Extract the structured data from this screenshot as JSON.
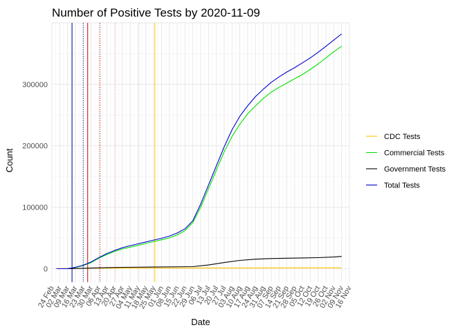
{
  "chart_data": {
    "type": "line",
    "title": "Number of Positive Tests by  2020-11-09",
    "xlabel": "Date",
    "ylabel": "Count",
    "x_type": "date",
    "xlim": [
      "2020-02-24",
      "2020-11-16"
    ],
    "ylim": [
      -22000,
      400000
    ],
    "y_ticks": [
      0,
      100000,
      200000,
      300000
    ],
    "y_tick_labels": [
      "0",
      "100000",
      "200000",
      "300000"
    ],
    "x_ticks": [
      "2020-02-24",
      "2020-03-02",
      "2020-03-09",
      "2020-03-16",
      "2020-03-23",
      "2020-03-30",
      "2020-04-06",
      "2020-04-13",
      "2020-04-20",
      "2020-04-27",
      "2020-05-04",
      "2020-05-11",
      "2020-05-18",
      "2020-05-25",
      "2020-06-01",
      "2020-06-08",
      "2020-06-15",
      "2020-06-22",
      "2020-06-29",
      "2020-07-06",
      "2020-07-13",
      "2020-07-20",
      "2020-07-27",
      "2020-08-03",
      "2020-08-10",
      "2020-08-17",
      "2020-08-24",
      "2020-08-31",
      "2020-09-07",
      "2020-09-14",
      "2020-09-21",
      "2020-09-28",
      "2020-10-05",
      "2020-10-12",
      "2020-10-19",
      "2020-10-26",
      "2020-11-02",
      "2020-11-09",
      "2020-11-16"
    ],
    "x_tick_labels": [
      "24 Feb",
      "02 Mar",
      "09 Mar",
      "16 Mar",
      "23 Mar",
      "30 Mar",
      "06 Apr",
      "13 Apr",
      "20 Apr",
      "27 Apr",
      "04 May",
      "11 May",
      "18 May",
      "25 May",
      "01 Jun",
      "08 Jun",
      "15 Jun",
      "22 Jun",
      "29 Jun",
      "06 Jul",
      "13 Jul",
      "20 Jul",
      "27 Jul",
      "03 Aug",
      "10 Aug",
      "17 Aug",
      "24 Aug",
      "31 Aug",
      "07 Sep",
      "14 Sep",
      "21 Sep",
      "28 Sep",
      "05 Oct",
      "12 Oct",
      "19 Oct",
      "26 Oct",
      "02 Nov",
      "09 Nov",
      "16 Nov"
    ],
    "grid": true,
    "legend_position": "right",
    "series": [
      {
        "name": "CDC Tests",
        "color": "#FFC300",
        "points": [
          [
            "2020-02-28",
            0
          ],
          [
            "2020-03-09",
            300
          ],
          [
            "2020-03-23",
            600
          ],
          [
            "2020-04-20",
            900
          ],
          [
            "2020-05-25",
            1100
          ],
          [
            "2020-07-06",
            1200
          ],
          [
            "2020-09-07",
            1300
          ],
          [
            "2020-11-09",
            1400
          ]
        ]
      },
      {
        "name": "Commercial Tests",
        "color": "#00E000",
        "points": [
          [
            "2020-02-28",
            0
          ],
          [
            "2020-03-09",
            0
          ],
          [
            "2020-03-16",
            2000
          ],
          [
            "2020-03-23",
            5000
          ],
          [
            "2020-03-30",
            10000
          ],
          [
            "2020-04-06",
            17000
          ],
          [
            "2020-04-13",
            23000
          ],
          [
            "2020-04-20",
            28000
          ],
          [
            "2020-04-27",
            32000
          ],
          [
            "2020-05-04",
            35000
          ],
          [
            "2020-05-11",
            38000
          ],
          [
            "2020-05-18",
            41000
          ],
          [
            "2020-05-25",
            44000
          ],
          [
            "2020-06-01",
            47000
          ],
          [
            "2020-06-08",
            50000
          ],
          [
            "2020-06-15",
            55000
          ],
          [
            "2020-06-22",
            62000
          ],
          [
            "2020-06-29",
            75000
          ],
          [
            "2020-07-06",
            100000
          ],
          [
            "2020-07-13",
            130000
          ],
          [
            "2020-07-20",
            160000
          ],
          [
            "2020-07-27",
            190000
          ],
          [
            "2020-08-03",
            215000
          ],
          [
            "2020-08-10",
            235000
          ],
          [
            "2020-08-17",
            252000
          ],
          [
            "2020-08-24",
            265000
          ],
          [
            "2020-08-31",
            277000
          ],
          [
            "2020-09-07",
            287000
          ],
          [
            "2020-09-14",
            295000
          ],
          [
            "2020-09-21",
            302000
          ],
          [
            "2020-09-28",
            309000
          ],
          [
            "2020-10-05",
            316000
          ],
          [
            "2020-10-12",
            324000
          ],
          [
            "2020-10-19",
            333000
          ],
          [
            "2020-10-26",
            343000
          ],
          [
            "2020-11-02",
            353000
          ],
          [
            "2020-11-09",
            362000
          ]
        ]
      },
      {
        "name": "Government Tests",
        "color": "#000000",
        "points": [
          [
            "2020-02-28",
            0
          ],
          [
            "2020-03-09",
            0
          ],
          [
            "2020-03-16",
            300
          ],
          [
            "2020-03-30",
            1000
          ],
          [
            "2020-04-13",
            1800
          ],
          [
            "2020-04-27",
            2200
          ],
          [
            "2020-05-25",
            2700
          ],
          [
            "2020-06-29",
            3300
          ],
          [
            "2020-07-13",
            6000
          ],
          [
            "2020-07-27",
            10000
          ],
          [
            "2020-08-10",
            13500
          ],
          [
            "2020-08-24",
            15500
          ],
          [
            "2020-09-07",
            16500
          ],
          [
            "2020-09-21",
            17000
          ],
          [
            "2020-10-05",
            17500
          ],
          [
            "2020-10-19",
            18000
          ],
          [
            "2020-11-02",
            19000
          ],
          [
            "2020-11-09",
            20000
          ]
        ]
      },
      {
        "name": "Total Tests",
        "color": "#0000D0",
        "points": [
          [
            "2020-02-28",
            0
          ],
          [
            "2020-03-09",
            0
          ],
          [
            "2020-03-16",
            2300
          ],
          [
            "2020-03-23",
            5600
          ],
          [
            "2020-03-30",
            11000
          ],
          [
            "2020-04-06",
            18000
          ],
          [
            "2020-04-13",
            24500
          ],
          [
            "2020-04-20",
            29500
          ],
          [
            "2020-04-27",
            34000
          ],
          [
            "2020-05-04",
            37500
          ],
          [
            "2020-05-11",
            40500
          ],
          [
            "2020-05-18",
            43500
          ],
          [
            "2020-05-25",
            46500
          ],
          [
            "2020-06-01",
            49500
          ],
          [
            "2020-06-08",
            53000
          ],
          [
            "2020-06-15",
            58000
          ],
          [
            "2020-06-22",
            65000
          ],
          [
            "2020-06-29",
            78000
          ],
          [
            "2020-07-06",
            105000
          ],
          [
            "2020-07-13",
            136000
          ],
          [
            "2020-07-20",
            167000
          ],
          [
            "2020-07-27",
            198000
          ],
          [
            "2020-08-03",
            226000
          ],
          [
            "2020-08-10",
            248000
          ],
          [
            "2020-08-17",
            265000
          ],
          [
            "2020-08-24",
            280000
          ],
          [
            "2020-08-31",
            292000
          ],
          [
            "2020-09-07",
            303000
          ],
          [
            "2020-09-14",
            312000
          ],
          [
            "2020-09-21",
            320000
          ],
          [
            "2020-09-28",
            327000
          ],
          [
            "2020-10-05",
            335000
          ],
          [
            "2020-10-12",
            343000
          ],
          [
            "2020-10-19",
            352000
          ],
          [
            "2020-10-26",
            362000
          ],
          [
            "2020-11-02",
            372000
          ],
          [
            "2020-11-09",
            382000
          ]
        ]
      }
    ],
    "reference_lines": [
      {
        "date": "2020-03-13",
        "color": "#00008B",
        "style": "solid"
      },
      {
        "date": "2020-03-23",
        "color": "#00008B",
        "style": "dotted"
      },
      {
        "date": "2020-03-27",
        "color": "#CC0000",
        "style": "solid"
      },
      {
        "date": "2020-04-07",
        "color": "#CC0000",
        "style": "dotted"
      },
      {
        "date": "2020-04-21",
        "color": "#FF9999",
        "style": "dotted"
      },
      {
        "date": "2020-05-12",
        "color": "#CCCCCC",
        "style": "dotted"
      },
      {
        "date": "2020-05-26",
        "color": "#FFCC00",
        "style": "solid"
      }
    ]
  }
}
